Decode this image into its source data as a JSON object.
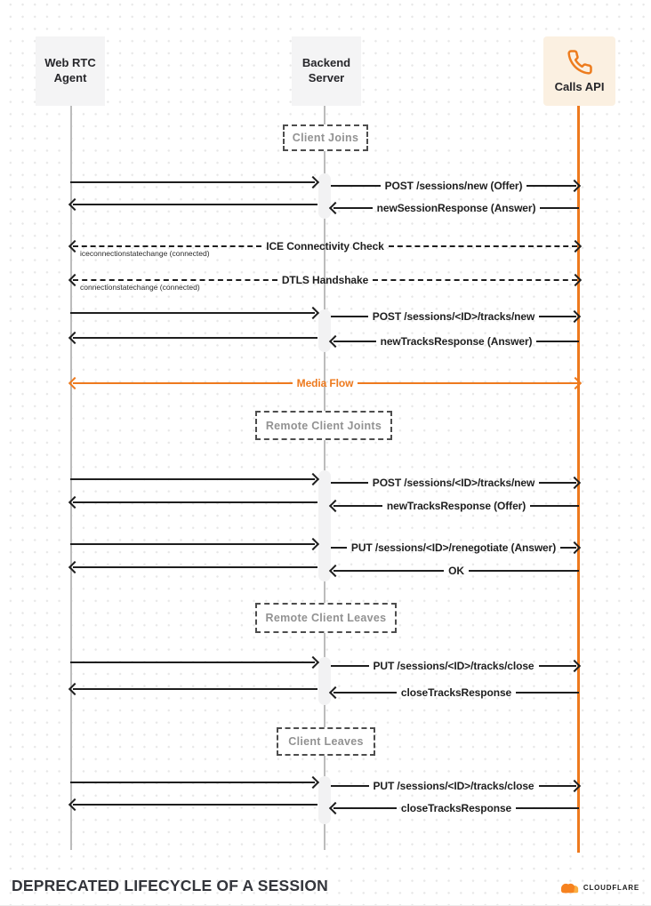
{
  "page": {
    "title": "DEPRECATED LIFECYCLE OF A SESSION"
  },
  "brand": {
    "wordmark": "CLOUDFLARE"
  },
  "actors": {
    "web_rtc_agent": {
      "label": "Web RTC\nAgent"
    },
    "backend_server": {
      "label": "Backend\nServer"
    },
    "calls_api": {
      "label": "Calls API",
      "icon": "phone-icon"
    }
  },
  "phases": {
    "client_joins": "Client Joins",
    "remote_client_joins": "Remote Client Joints",
    "remote_client_leaves": "Remote Client Leaves",
    "client_leaves": "Client Leaves"
  },
  "colors": {
    "accent_orange": "#ee7a1e",
    "arrow_black": "#1e1e1e",
    "lifeline_gray": "#bcbcbc",
    "calls_api_box_bg": "#fbf0e1",
    "actor_box_bg": "#f4f4f5"
  },
  "messages": [
    {
      "label": "POST /sessions/new (Offer)",
      "from": "backend_server",
      "to": "calls_api",
      "dir": "right",
      "style": "solid",
      "span": "right",
      "relay": true,
      "sublabel": null
    },
    {
      "label": "newSessionResponse (Answer)",
      "from": "calls_api",
      "to": "backend_server",
      "dir": "left",
      "style": "solid",
      "span": "right",
      "relay": true,
      "sublabel": null
    },
    {
      "label": "ICE Connectivity Check",
      "from": "web_rtc_agent",
      "to": "calls_api",
      "dir": "both",
      "style": "dashed",
      "span": "full",
      "relay": false,
      "sublabel": "iceconnectionstatechange (connected)"
    },
    {
      "label": "DTLS Handshake",
      "from": "web_rtc_agent",
      "to": "calls_api",
      "dir": "both",
      "style": "dashed",
      "span": "full",
      "relay": false,
      "sublabel": "connectionstatechange (connected)"
    },
    {
      "label": "POST /sessions/<ID>/tracks/new",
      "from": "backend_server",
      "to": "calls_api",
      "dir": "right",
      "style": "solid",
      "span": "right",
      "relay": true,
      "sublabel": null
    },
    {
      "label": "newTracksResponse (Answer)",
      "from": "calls_api",
      "to": "backend_server",
      "dir": "left",
      "style": "solid",
      "span": "right",
      "relay": true,
      "sublabel": null
    },
    {
      "label": "Media Flow",
      "from": "web_rtc_agent",
      "to": "calls_api",
      "dir": "both",
      "style": "accent",
      "span": "full",
      "relay": false,
      "sublabel": null
    },
    {
      "label": "POST /sessions/<ID>/tracks/new",
      "from": "backend_server",
      "to": "calls_api",
      "dir": "right",
      "style": "solid",
      "span": "right",
      "relay": true,
      "sublabel": null
    },
    {
      "label": "newTracksResponse (Offer)",
      "from": "calls_api",
      "to": "backend_server",
      "dir": "left",
      "style": "solid",
      "span": "right",
      "relay": true,
      "sublabel": null
    },
    {
      "label": "PUT /sessions/<ID>/renegotiate (Answer)",
      "from": "backend_server",
      "to": "calls_api",
      "dir": "right",
      "style": "solid",
      "span": "right",
      "relay": true,
      "sublabel": null
    },
    {
      "label": "OK",
      "from": "calls_api",
      "to": "backend_server",
      "dir": "left",
      "style": "solid",
      "span": "right",
      "relay": true,
      "sublabel": null
    },
    {
      "label": "PUT /sessions/<ID>/tracks/close",
      "from": "backend_server",
      "to": "calls_api",
      "dir": "right",
      "style": "solid",
      "span": "right",
      "relay": true,
      "sublabel": null
    },
    {
      "label": "closeTracksResponse",
      "from": "calls_api",
      "to": "backend_server",
      "dir": "left",
      "style": "solid",
      "span": "right",
      "relay": true,
      "sublabel": null
    },
    {
      "label": "PUT /sessions/<ID>/tracks/close",
      "from": "backend_server",
      "to": "calls_api",
      "dir": "right",
      "style": "solid",
      "span": "right",
      "relay": true,
      "sublabel": null
    },
    {
      "label": "closeTracksResponse",
      "from": "calls_api",
      "to": "backend_server",
      "dir": "left",
      "style": "solid",
      "span": "right",
      "relay": true,
      "sublabel": null
    }
  ]
}
